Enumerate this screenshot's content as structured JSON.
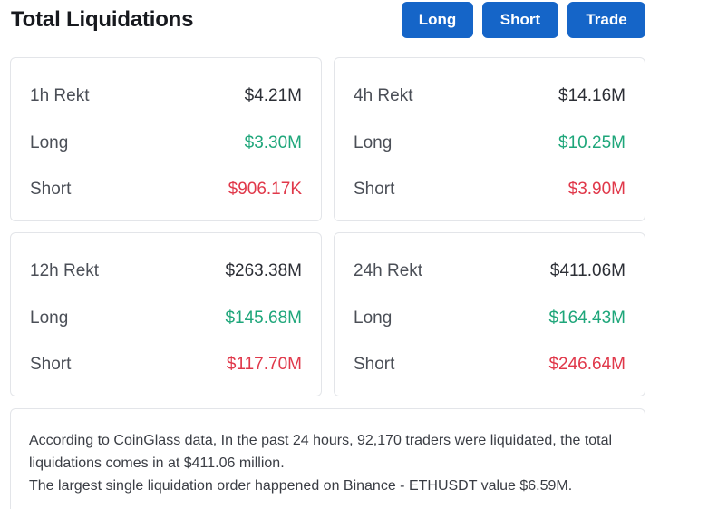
{
  "header": {
    "title": "Total Liquidations",
    "buttons": {
      "long": "Long",
      "short": "Short",
      "trade": "Trade"
    }
  },
  "cards": [
    {
      "title": "1h Rekt",
      "total": "$4.21M",
      "long_label": "Long",
      "long": "$3.30M",
      "short_label": "Short",
      "short": "$906.17K"
    },
    {
      "title": "4h Rekt",
      "total": "$14.16M",
      "long_label": "Long",
      "long": "$10.25M",
      "short_label": "Short",
      "short": "$3.90M"
    },
    {
      "title": "12h Rekt",
      "total": "$263.38M",
      "long_label": "Long",
      "long": "$145.68M",
      "short_label": "Short",
      "short": "$117.70M"
    },
    {
      "title": "24h Rekt",
      "total": "$411.06M",
      "long_label": "Long",
      "long": "$164.43M",
      "short_label": "Short",
      "short": "$246.64M"
    }
  ],
  "summary": {
    "line1": "According to CoinGlass data, In the past 24 hours, 92,170 traders were liquidated, the total liquidations comes in at $411.06 million.",
    "line2": "The largest single liquidation order happened on Binance - ETHUSDT value $6.59M."
  },
  "colors": {
    "accent": "#1565c8",
    "long": "#1ea67a",
    "short": "#e0384a"
  }
}
